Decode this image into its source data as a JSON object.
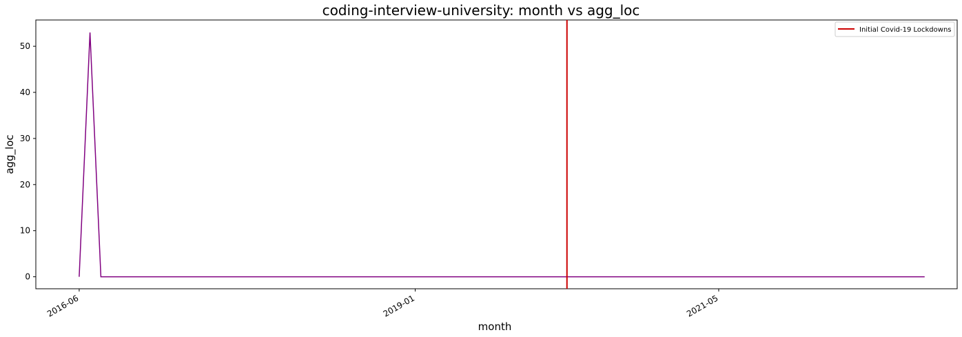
{
  "chart_data": {
    "type": "line",
    "title": "coding-interview-university: month vs agg_loc",
    "xlabel": "month",
    "ylabel": "agg_loc",
    "x_tick_labels": [
      "2016-06",
      "2019-01",
      "2021-05"
    ],
    "y_ticks": [
      0,
      10,
      20,
      30,
      40,
      50
    ],
    "y_tick_labels": [
      "0",
      "10",
      "20",
      "30",
      "40",
      "50"
    ],
    "ylim": [
      -2.6,
      55.7
    ],
    "xlim": [
      "2016-02",
      "2023-03"
    ],
    "grid": false,
    "legend_position": "top-right",
    "series": [
      {
        "color": "#800080",
        "x": [
          "2016-06",
          "2016-07",
          "2016-08",
          "2022-12"
        ],
        "y": [
          0,
          53,
          0,
          0
        ]
      }
    ],
    "annotations": [
      {
        "type": "vline",
        "x": "2020-03",
        "label": "Initial Covid-19 Lockdowns",
        "color": "#cc0000"
      }
    ]
  }
}
